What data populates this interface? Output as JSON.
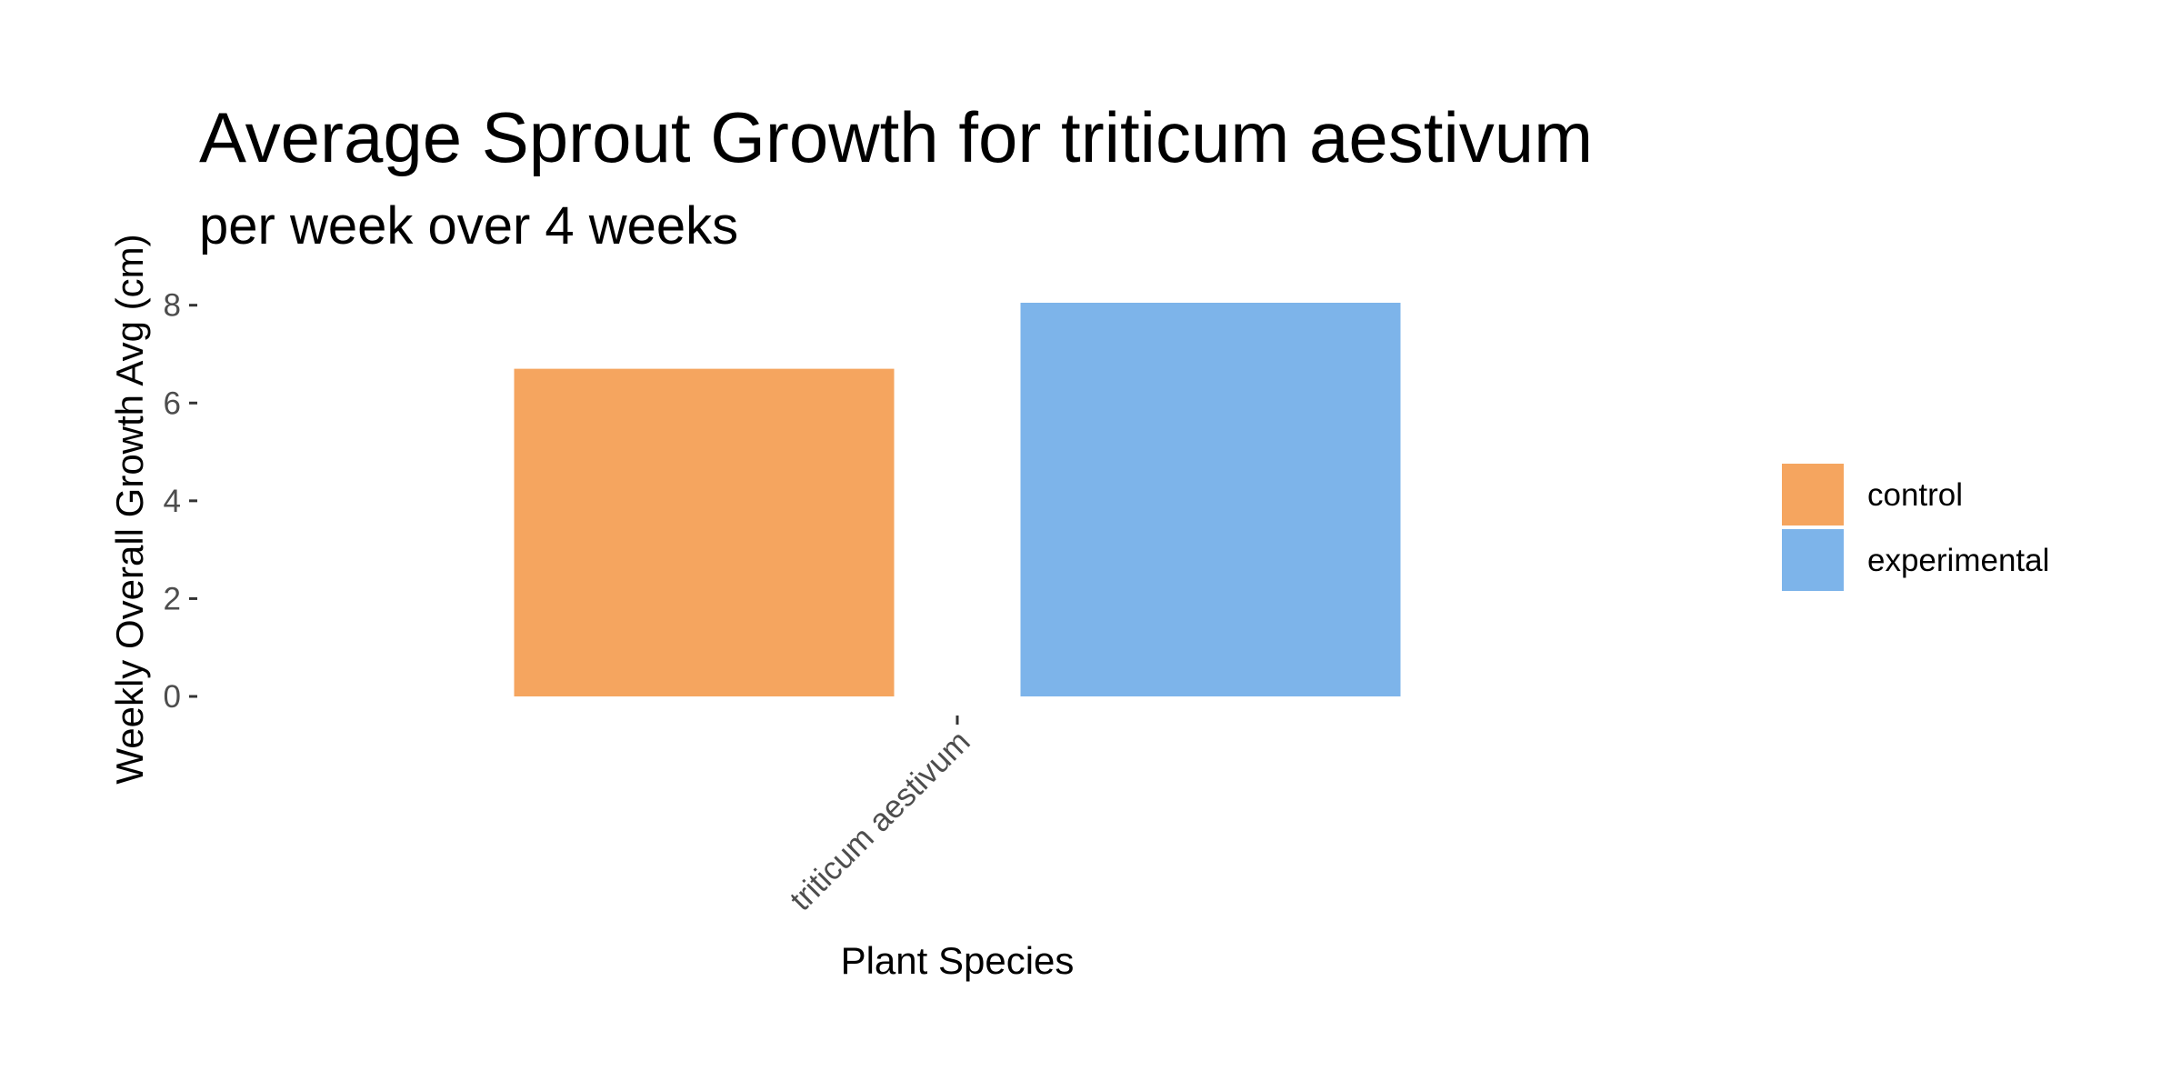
{
  "chart_data": {
    "type": "bar",
    "title": "Average Sprout Growth for triticum aestivum",
    "subtitle": "per week over 4 weeks",
    "xlabel": "Plant Species",
    "ylabel": "Weekly Overall Growth Avg (cm)",
    "categories": [
      "triticum aestivum"
    ],
    "series": [
      {
        "name": "control",
        "color": "#F5A55F",
        "values": [
          6.7
        ]
      },
      {
        "name": "experimental",
        "color": "#7DB4EA",
        "values": [
          8.05
        ]
      }
    ],
    "ylim": [
      0,
      8.05
    ],
    "yticks": [
      0,
      2,
      4,
      6,
      8
    ],
    "ytick_labels": [
      "0",
      "2",
      "4",
      "6",
      "8"
    ],
    "grid": false,
    "legend_position": "right",
    "x_tick_label_rotation": "45 degrees"
  }
}
